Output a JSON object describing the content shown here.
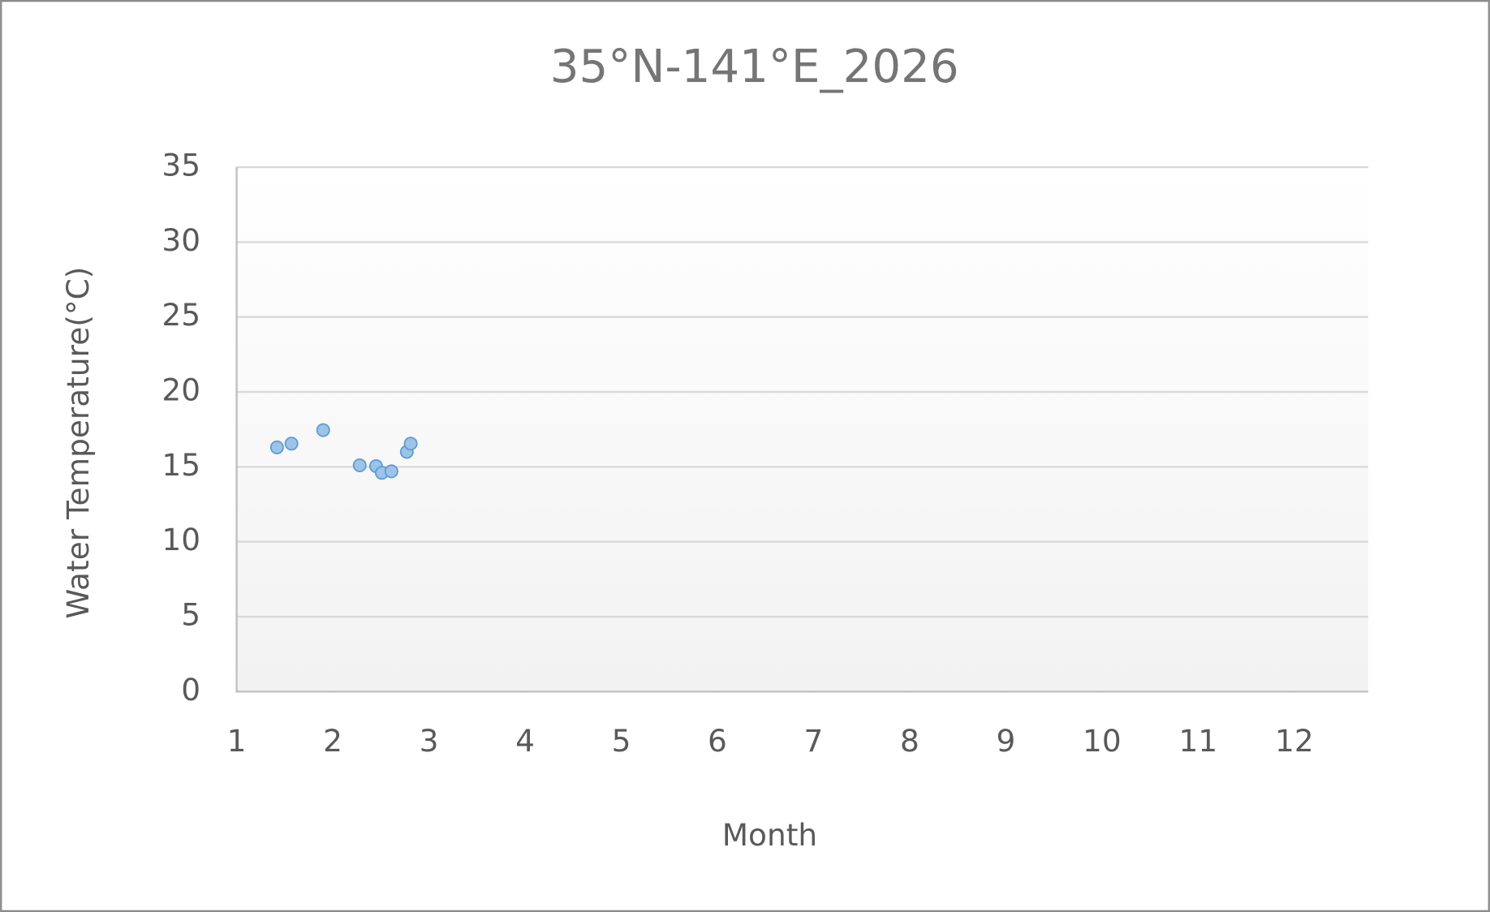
{
  "chart_data": {
    "type": "scatter",
    "title": "35°N-141°E_2026",
    "x_label": "Month",
    "y_label": "Water Temperature(°C)",
    "x": [
      1.42,
      1.57,
      1.9,
      2.28,
      2.45,
      2.51,
      2.61,
      2.77,
      2.81
    ],
    "values": [
      16.3,
      16.55,
      17.45,
      15.1,
      15.05,
      14.6,
      14.7,
      16.0,
      16.55
    ],
    "color": "#9dc3e6",
    "edge_color": "#5b9bd5",
    "xlim": [
      1,
      12.77
    ],
    "xticks": [
      1,
      2,
      3,
      4,
      5,
      6,
      7,
      8,
      9,
      10,
      11,
      12
    ],
    "ylim": [
      0,
      35
    ],
    "yticks": [
      0,
      5,
      10,
      15,
      20,
      25,
      30,
      35
    ],
    "grid": true
  }
}
